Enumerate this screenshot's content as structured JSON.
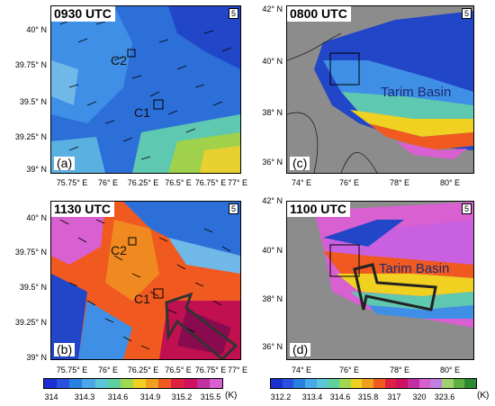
{
  "panels": {
    "a": {
      "time": "0930 UTC",
      "letter": "(a)",
      "ref": "5"
    },
    "b": {
      "time": "1130 UTC",
      "letter": "(b)",
      "ref": "5"
    },
    "c": {
      "time": "0800 UTC",
      "letter": "(c)",
      "ref": "5"
    },
    "d": {
      "time": "1100 UTC",
      "letter": "(d)",
      "ref": "5"
    }
  },
  "left_axes": {
    "y": [
      "40° N",
      "39.75° N",
      "39.5° N",
      "39.25° N",
      "39° N"
    ],
    "x": [
      "75.75° E",
      "76° E",
      "76.25° E",
      "76.5° E",
      "76.75° E",
      "77° E"
    ]
  },
  "right_axes": {
    "y": [
      "42° N",
      "40° N",
      "38° N",
      "36° N"
    ],
    "x": [
      "74° E",
      "76° E",
      "78° E",
      "80° E"
    ]
  },
  "place_labels": {
    "c1": "C1",
    "c2": "C2",
    "basin": "Tarim Basin"
  },
  "colorbars": {
    "left": {
      "ticks": [
        "314",
        "314.3",
        "314.6",
        "314.9",
        "315.2",
        "315.5"
      ],
      "unit": "(K)"
    },
    "right": {
      "ticks": [
        "312.2",
        "313.4",
        "314.6",
        "315.8",
        "317",
        "320",
        "323.6"
      ],
      "unit": "(K)"
    }
  },
  "colors": {
    "cold": "#1a2fd0",
    "cool": "#2a80e0",
    "mild": "#5ac8d8",
    "warm": "#f0d020",
    "hot": "#f05020",
    "hotter": "#d01060",
    "hottest": "#d860d0",
    "terrain": "#8c8c8c"
  }
}
